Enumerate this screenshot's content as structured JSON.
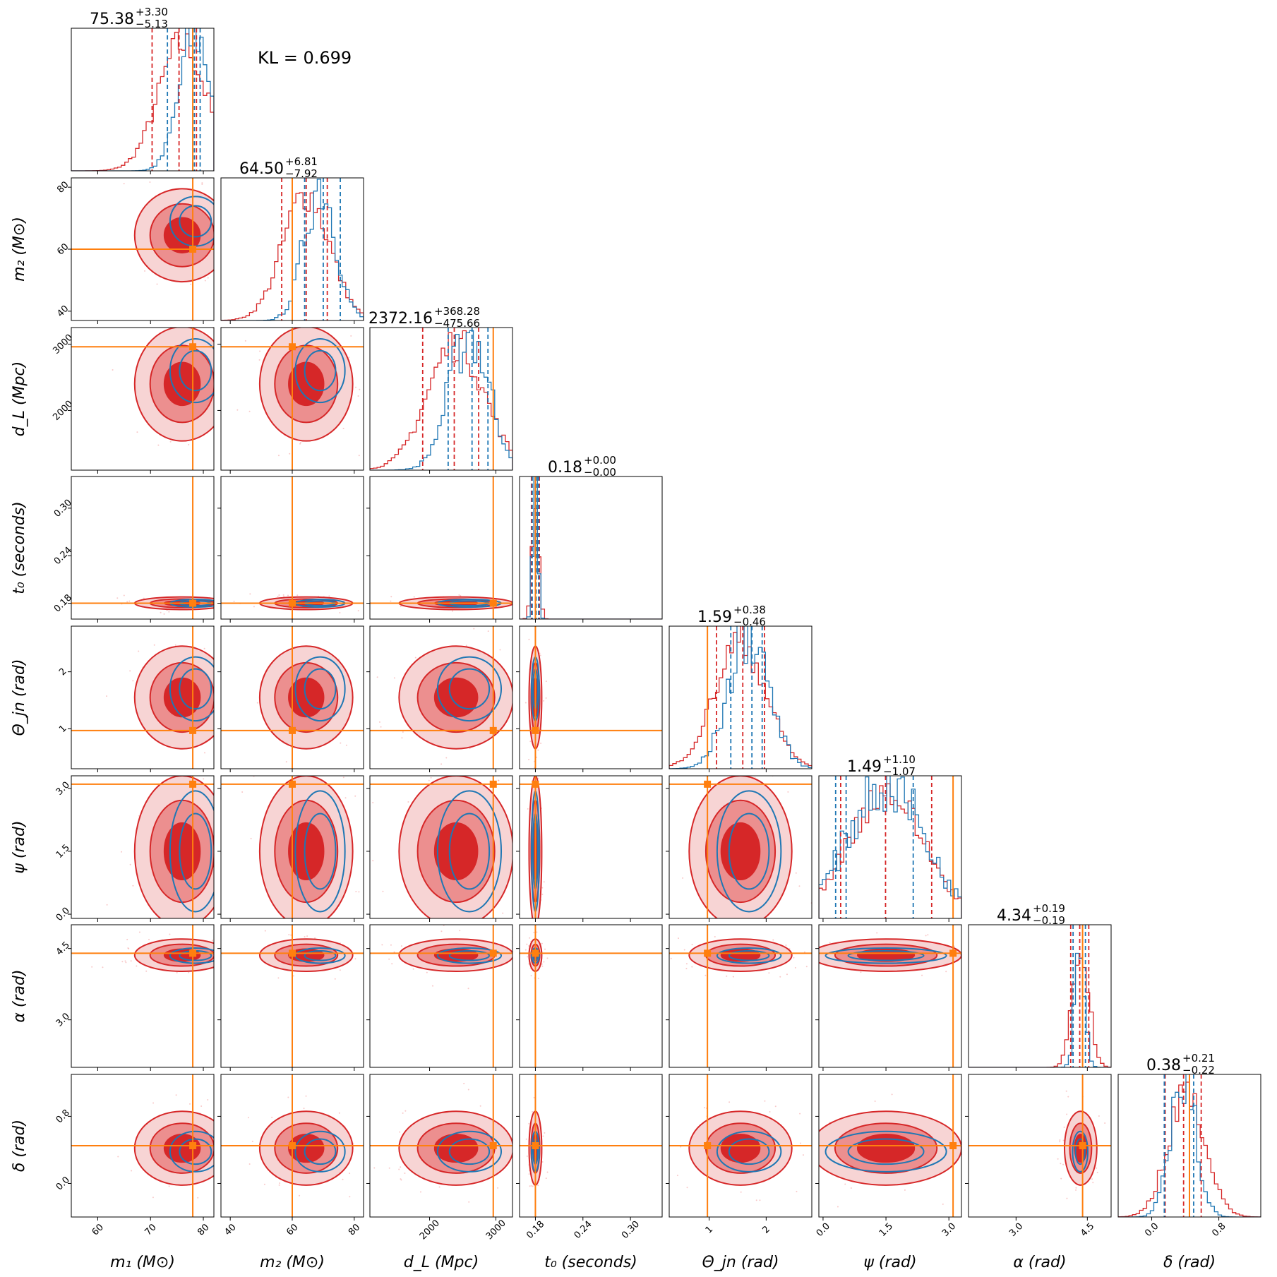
{
  "chart_data": {
    "type": "corner",
    "annotation": "KL = 0.699",
    "colors": {
      "series_a": "#d62728",
      "series_b": "#1f77b4",
      "truth": "#ff7f0e"
    },
    "params": [
      {
        "key": "m1",
        "label": "m₁ (M⊙)",
        "range": [
          55,
          82
        ],
        "ticks": [
          60,
          70,
          80
        ],
        "ticklabels": [
          "60",
          "70",
          "80"
        ],
        "truth": 78,
        "title": {
          "median": "75.38",
          "plus": "+3.30",
          "minus": "−5.13"
        },
        "red_q": [
          70.3,
          75.4,
          78.7
        ],
        "blue_q": [
          73.2,
          78.3,
          79.4
        ],
        "red_center": 76,
        "blue_center": 78.5,
        "red_sd": 4.5,
        "blue_sd": 3.0
      },
      {
        "key": "m2",
        "label": "m₂ (M⊙)",
        "range": [
          37,
          83
        ],
        "ticks": [
          40,
          60,
          80
        ],
        "ticklabels": [
          "40",
          "60",
          "80"
        ],
        "truth": 60,
        "title": {
          "median": "64.50",
          "plus": "+6.81",
          "minus": "−7.92"
        },
        "red_q": [
          56.6,
          64.5,
          71.3
        ],
        "blue_q": [
          64.0,
          70.0,
          75.5
        ],
        "red_center": 64.5,
        "blue_center": 69,
        "red_sd": 7.5,
        "blue_sd": 5.0
      },
      {
        "key": "dL",
        "label": "d_L (Mpc)",
        "range": [
          1100,
          3250
        ],
        "ticks": [
          2000,
          3000
        ],
        "ticklabels": [
          "2000",
          "3000"
        ],
        "truth": 2960,
        "title": {
          "median": "2372.16",
          "plus": "+368.28",
          "minus": "−475.66"
        },
        "red_q": [
          1896,
          2372,
          2740
        ],
        "blue_q": [
          2280,
          2640,
          2880
        ],
        "red_center": 2400,
        "blue_center": 2600,
        "red_sd": 430,
        "blue_sd": 300
      },
      {
        "key": "t0",
        "label": "t₀ (seconds)",
        "range": [
          0.16,
          0.34
        ],
        "ticks": [
          0.18,
          0.24,
          0.3
        ],
        "ticklabels": [
          "0.18",
          "0.24",
          "0.30"
        ],
        "truth": 0.18,
        "title": {
          "median": "0.18",
          "plus": "+0.00",
          "minus": "−0.00"
        },
        "red_q": [
          0.175,
          0.18,
          0.185
        ],
        "blue_q": [
          0.176,
          0.181,
          0.184
        ],
        "red_center": 0.18,
        "blue_center": 0.18,
        "red_sd": 0.004,
        "blue_sd": 0.003
      },
      {
        "key": "theta_jn",
        "label": "Θ_jn (rad)",
        "range": [
          0.3,
          2.8
        ],
        "ticks": [
          1,
          2
        ],
        "ticklabels": [
          "1",
          "2"
        ],
        "truth": 0.97,
        "title": {
          "median": "1.59",
          "plus": "+0.38",
          "minus": "−0.46"
        },
        "red_q": [
          1.13,
          1.59,
          1.97
        ],
        "blue_q": [
          1.38,
          1.75,
          1.93
        ],
        "red_center": 1.55,
        "blue_center": 1.7,
        "red_sd": 0.45,
        "blue_sd": 0.35
      },
      {
        "key": "psi",
        "label": "ψ (rad)",
        "range": [
          -0.1,
          3.3
        ],
        "ticks": [
          0.0,
          1.5,
          3.0
        ],
        "ticklabels": [
          "0.0",
          "1.5",
          "3.0"
        ],
        "truth": 3.1,
        "title": {
          "median": "1.49",
          "plus": "+1.10",
          "minus": "−1.07"
        },
        "red_q": [
          0.42,
          1.49,
          2.59
        ],
        "blue_q": [
          0.3,
          0.55,
          2.15
        ],
        "red_center": 1.5,
        "blue_center": 1.5,
        "red_sd": 0.9,
        "blue_sd": 0.9
      },
      {
        "key": "alpha",
        "label": "α (rad)",
        "range": [
          2.0,
          5.0
        ],
        "ticks": [
          3.0,
          4.5
        ],
        "ticklabels": [
          "3.0",
          "4.5"
        ],
        "truth": 4.4,
        "title": {
          "median": "4.34",
          "plus": "+0.19",
          "minus": "−0.19"
        },
        "red_q": [
          4.15,
          4.34,
          4.53
        ],
        "blue_q": [
          4.2,
          4.4,
          4.46
        ],
        "red_center": 4.36,
        "blue_center": 4.35,
        "red_sd": 0.17,
        "blue_sd": 0.1
      },
      {
        "key": "delta",
        "label": "δ (rad)",
        "range": [
          -0.4,
          1.3
        ],
        "ticks": [
          0.0,
          0.8
        ],
        "ticklabels": [
          "0.0",
          "0.8"
        ],
        "truth": 0.45,
        "title": {
          "median": "0.38",
          "plus": "+0.21",
          "minus": "−0.22"
        },
        "red_q": [
          0.16,
          0.38,
          0.59
        ],
        "blue_q": [
          0.15,
          0.45,
          0.5
        ],
        "red_center": 0.42,
        "blue_center": 0.38,
        "red_sd": 0.22,
        "blue_sd": 0.15
      }
    ]
  }
}
